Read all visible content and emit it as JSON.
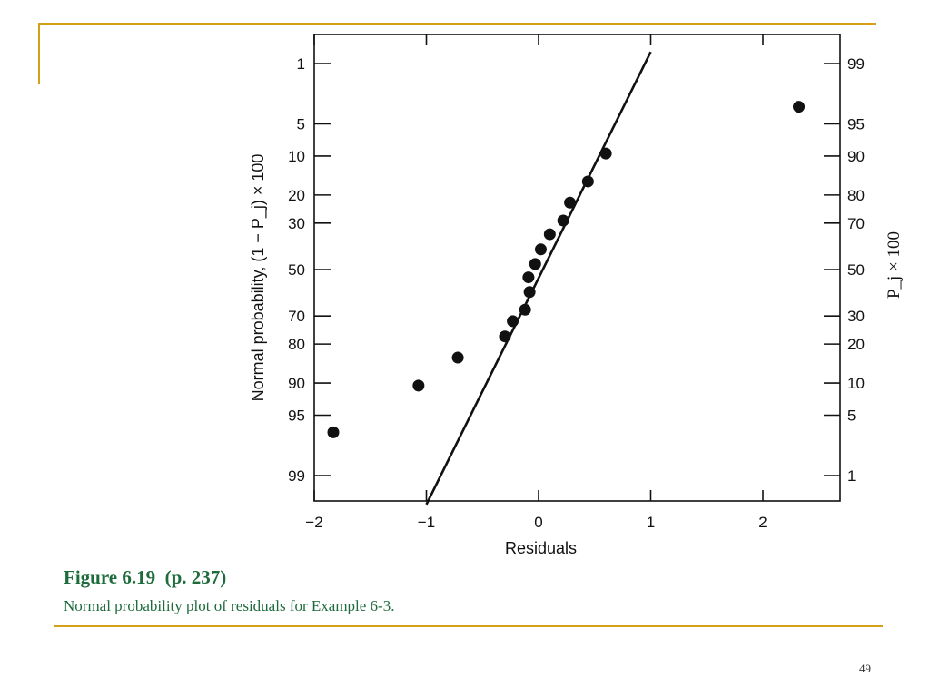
{
  "caption": {
    "title": "Figure 6.19  (p. 237)",
    "text": "Normal probability plot of residuals for Example 6-3."
  },
  "page_number": "49",
  "chart_data": {
    "type": "scatter",
    "title": "",
    "xlabel": "Residuals",
    "ylabel_left": "Normal probability, (1 − P_j) × 100",
    "ylabel_right": "P_j × 100",
    "xlim": [
      -2,
      2.7
    ],
    "x_ticks": [
      -2,
      -1,
      0,
      1,
      2
    ],
    "x_tick_labels": [
      "−2",
      "−1",
      "0",
      "1",
      "2"
    ],
    "left_ticks": [
      1,
      5,
      10,
      20,
      30,
      50,
      70,
      80,
      90,
      95,
      99
    ],
    "left_tick_labels": [
      "1",
      "5",
      "10",
      "20",
      "30",
      "50",
      "70",
      "80",
      "90",
      "95",
      "99"
    ],
    "right_ticks": [
      99,
      95,
      90,
      80,
      70,
      50,
      30,
      20,
      10,
      5,
      1
    ],
    "right_tick_labels": [
      "99",
      "95",
      "90",
      "80",
      "70",
      "50",
      "30",
      "20",
      "10",
      "5",
      "1"
    ],
    "y_scale": "normal-probability",
    "grid": false,
    "series": [
      {
        "points": [
          {
            "x": -1.83,
            "p": 96.7
          },
          {
            "x": -1.07,
            "p": 90.5
          },
          {
            "x": -0.72,
            "p": 84.0
          },
          {
            "x": -0.3,
            "p": 77.5
          },
          {
            "x": -0.23,
            "p": 72.0
          },
          {
            "x": -0.12,
            "p": 67.5
          },
          {
            "x": -0.08,
            "p": 60.0
          },
          {
            "x": -0.09,
            "p": 53.5
          },
          {
            "x": -0.03,
            "p": 47.5
          },
          {
            "x": 0.02,
            "p": 41.0
          },
          {
            "x": 0.1,
            "p": 34.5
          },
          {
            "x": 0.22,
            "p": 29.0
          },
          {
            "x": 0.28,
            "p": 22.5
          },
          {
            "x": 0.44,
            "p": 16.0
          },
          {
            "x": 0.6,
            "p": 9.5
          },
          {
            "x": 2.32,
            "p": 3.3
          }
        ]
      }
    ],
    "fit_line": {
      "x": [
        -1.0,
        1.0
      ],
      "p": [
        99.6,
        0.7
      ]
    }
  }
}
